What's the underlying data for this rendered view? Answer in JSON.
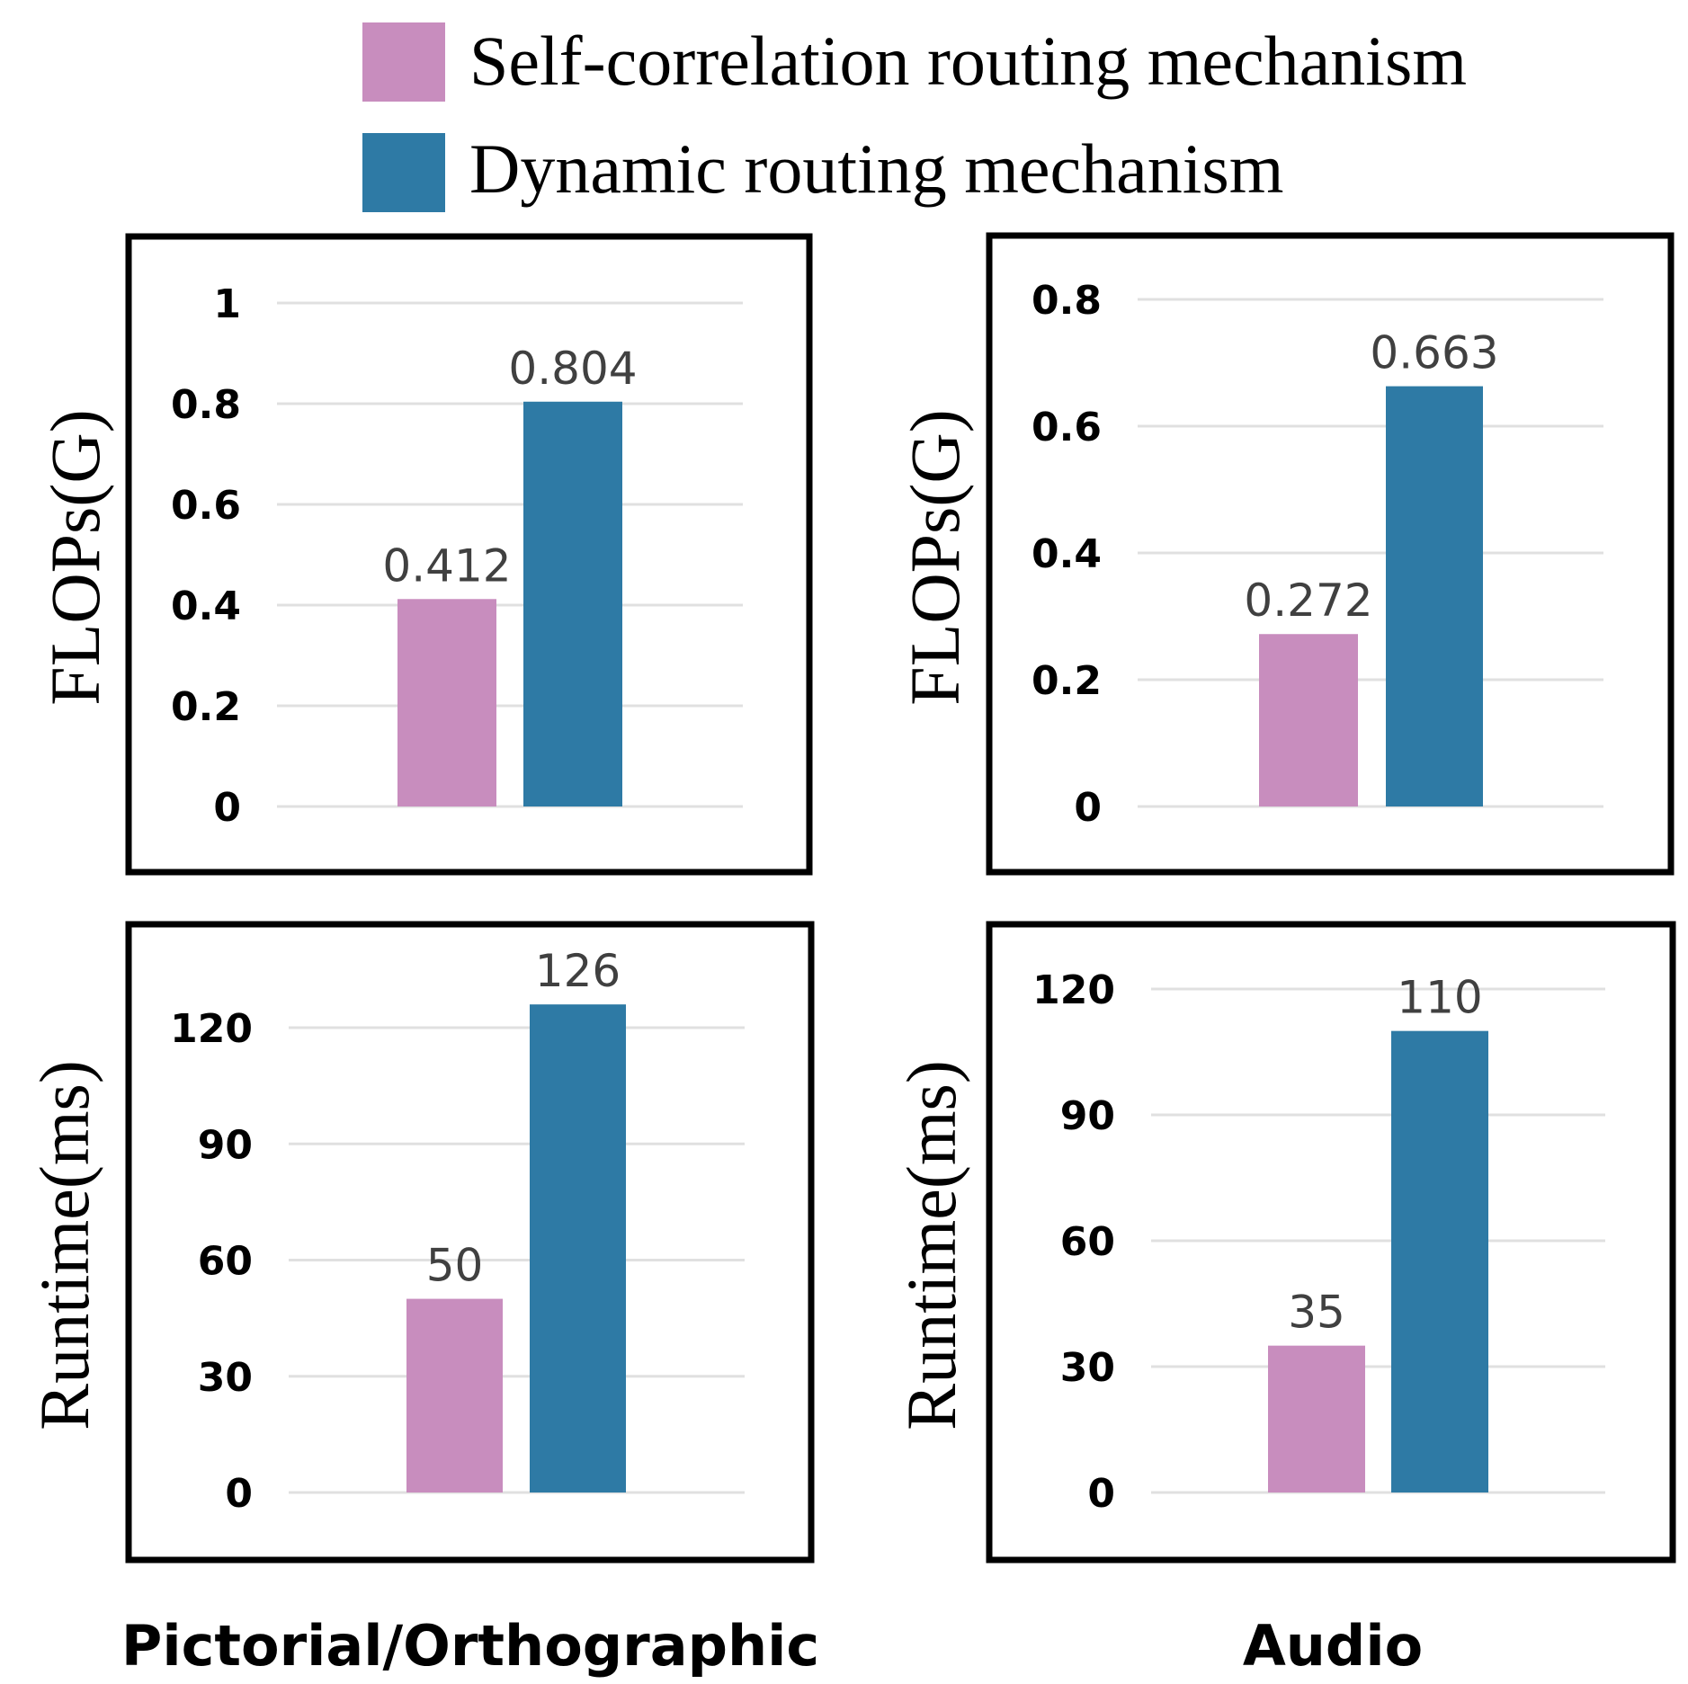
{
  "legend": [
    {
      "label": "Self-correlation routing mechanism",
      "color": "#c88dbe"
    },
    {
      "label": "Dynamic routing mechanism",
      "color": "#2e7aa5"
    }
  ],
  "groups": [
    "Pictorial/Orthographic",
    "Audio"
  ],
  "chart_data": [
    {
      "type": "bar",
      "group": "Pictorial/Orthographic",
      "ylabel": "FLOPs(G)",
      "ylim": [
        0,
        1
      ],
      "yticks": [
        "0",
        "0.2",
        "0.4",
        "0.6",
        "0.8",
        "1"
      ],
      "grid": true,
      "series": [
        {
          "name": "Self-correlation routing mechanism",
          "value": 0.412,
          "label": "0.412"
        },
        {
          "name": "Dynamic routing mechanism",
          "value": 0.804,
          "label": "0.804"
        }
      ]
    },
    {
      "type": "bar",
      "group": "Audio",
      "ylabel": "FLOPs(G)",
      "ylim": [
        0,
        0.8
      ],
      "yticks": [
        "0",
        "0.2",
        "0.4",
        "0.6",
        "0.8"
      ],
      "grid": true,
      "series": [
        {
          "name": "Self-correlation routing mechanism",
          "value": 0.272,
          "label": "0.272"
        },
        {
          "name": "Dynamic routing mechanism",
          "value": 0.663,
          "label": "0.663"
        }
      ]
    },
    {
      "type": "bar",
      "group": "Pictorial/Orthographic",
      "ylabel": "Runtime(ms)",
      "ylim": [
        0,
        120
      ],
      "yticks": [
        "0",
        "30",
        "60",
        "90",
        "120"
      ],
      "grid": true,
      "series": [
        {
          "name": "Self-correlation routing mechanism",
          "value": 50,
          "label": "50"
        },
        {
          "name": "Dynamic routing mechanism",
          "value": 126,
          "label": "126"
        }
      ]
    },
    {
      "type": "bar",
      "group": "Audio",
      "ylabel": "Runtime(ms)",
      "ylim": [
        0,
        120
      ],
      "yticks": [
        "0",
        "30",
        "60",
        "90",
        "120"
      ],
      "grid": true,
      "series": [
        {
          "name": "Self-correlation routing mechanism",
          "value": 35,
          "label": "35"
        },
        {
          "name": "Dynamic routing mechanism",
          "value": 110,
          "label": "110"
        }
      ]
    }
  ]
}
